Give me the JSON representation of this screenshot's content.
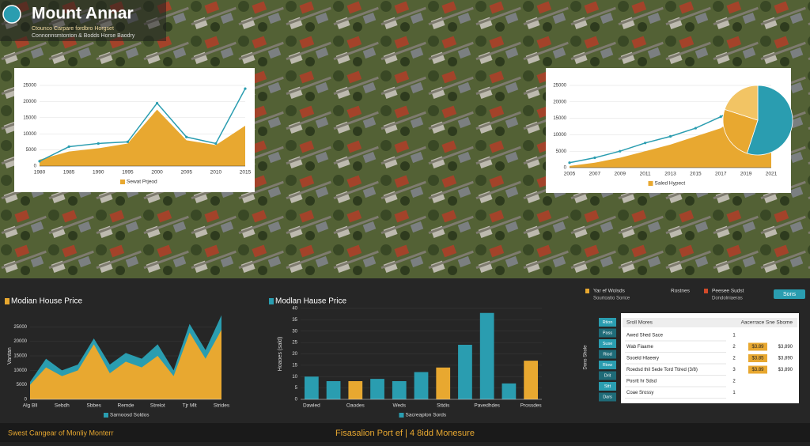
{
  "header": {
    "title": "Mount Annar",
    "subtitle": "Ctounco Carpare fordbro Horgset",
    "tagline": "Connonnsmtonton & Bodds Horse Baodry"
  },
  "chart_data": [
    {
      "type": "area",
      "legend": "lower center",
      "categories": [
        "1980",
        "1985",
        "1990",
        "1995",
        "2000",
        "2005",
        "2010",
        "2015"
      ],
      "series": [
        {
          "name": "Sewat Prjeod",
          "color": "#e8a830",
          "fill": true,
          "values": [
            2000,
            4500,
            5500,
            7000,
            17500,
            8000,
            6500,
            12500
          ]
        },
        {
          "color": "#2a9db0",
          "fill": false,
          "values": [
            1500,
            6000,
            7000,
            7500,
            19500,
            9000,
            7000,
            24000
          ]
        }
      ],
      "ylim": [
        0,
        25000
      ],
      "yticks": [
        0,
        5000,
        10000,
        15000,
        20000,
        25000
      ]
    },
    {
      "type": "area",
      "legend": "lower center",
      "categories": [
        "2005",
        "2007",
        "2009",
        "2011",
        "2013",
        "2015",
        "2017",
        "2019",
        "2021"
      ],
      "series": [
        {
          "name": "Saled Hypect",
          "color": "#e8a830",
          "fill": true,
          "values": [
            500,
            1500,
            3000,
            5000,
            7000,
            9500,
            12000,
            17500,
            24000
          ]
        },
        {
          "color": "#2a9db0",
          "fill": false,
          "values": [
            1500,
            3000,
            5000,
            7500,
            9500,
            12000,
            15500,
            19500,
            23500
          ]
        }
      ],
      "ylim": [
        0,
        25000
      ],
      "yticks": [
        0,
        5000,
        10000,
        15000,
        20000,
        25000
      ]
    },
    {
      "type": "pie",
      "values": [
        55,
        25,
        20
      ],
      "colors": [
        "#2a9db0",
        "#e8a830",
        "#f2c464"
      ]
    },
    {
      "type": "area",
      "title": "Modian House Price",
      "ylabel": "Vantan",
      "legend": "lower center",
      "categories": [
        "Alg Bll",
        null,
        "Sebdh",
        null,
        "Sbbes",
        null,
        "Remde",
        null,
        "Strelot",
        null,
        "Tjr Mlt",
        null,
        "Strides"
      ],
      "series": [
        {
          "name": "Sarnoosd Soldos",
          "color": "#2a9db0",
          "fill": true,
          "values": [
            6000,
            14000,
            10000,
            12000,
            21000,
            12000,
            16000,
            14000,
            19000,
            10000,
            26000,
            17000,
            29000
          ]
        },
        {
          "color": "#e8a830",
          "fill": true,
          "values": [
            5000,
            11000,
            8000,
            10000,
            19000,
            9000,
            13000,
            11000,
            15000,
            8000,
            23000,
            14000,
            24000
          ]
        }
      ],
      "ylim": [
        0,
        30000
      ],
      "yticks": [
        0,
        5000,
        10000,
        15000,
        20000,
        25000
      ]
    },
    {
      "type": "bar",
      "title": "Modlan Hause Price",
      "ylabel": "Hoaoes (sald)",
      "legend": "lower center",
      "categories": [
        "Dawled",
        null,
        "Oaodes",
        null,
        "Weds",
        null,
        "Sttdis",
        null,
        "Pavedhdes",
        null,
        "Prossdes"
      ],
      "series": [
        {
          "name": "Sacreaplon Sords",
          "color": "#2a9db0",
          "values": [
            10,
            8,
            8,
            9,
            8,
            12,
            14,
            24,
            38,
            7,
            17
          ],
          "colors": [
            "#2a9db0",
            "#2a9db0",
            "#e8a830",
            "#2a9db0",
            "#2a9db0",
            "#2a9db0",
            "#e8a830",
            "#2a9db0",
            "#2a9db0",
            "#2a9db0",
            "#e8a830"
          ]
        }
      ],
      "ylim": [
        0,
        40
      ],
      "yticks": [
        0,
        5,
        10,
        15,
        20,
        25,
        30,
        35,
        40
      ]
    }
  ],
  "keys": [
    {
      "label": "Yar ef Wolsds",
      "sub": "Sourtoatio Sorice",
      "color": "#e8a830"
    },
    {
      "label": "Rostnes"
    },
    {
      "label": "Peesee Sudst",
      "sub": "Dondolniaeras",
      "color": "#d24a2a"
    }
  ],
  "button": "Sons",
  "table": {
    "side_title": "Dons Shole",
    "side": [
      "Rtion",
      "Pass",
      "Suse",
      "Riod",
      "Riow",
      "Drit",
      "Sttt",
      "Dars"
    ],
    "header": [
      "Sroll Mores",
      "Aacerrace Sne Sbome"
    ],
    "rows": [
      [
        "Awed Shed Sace",
        "1"
      ],
      [
        "Wab Fiaame",
        "2",
        "$3.89",
        "$3,890"
      ],
      [
        "Sooeld Hlaeery",
        "2",
        "$3.85",
        "$3,890"
      ],
      [
        "Roedsd thil Sede Tord Ttired (3/8)",
        "3",
        "$3.89",
        "$3,890"
      ],
      [
        "Posrtt hr Sdsd",
        "2"
      ],
      [
        "Coae Srossy",
        "1"
      ]
    ]
  },
  "footer": {
    "left": "Swest Cangear of Monliy Monterr",
    "center": "Fisasalion Port ef | 4 8idd Monesure"
  }
}
